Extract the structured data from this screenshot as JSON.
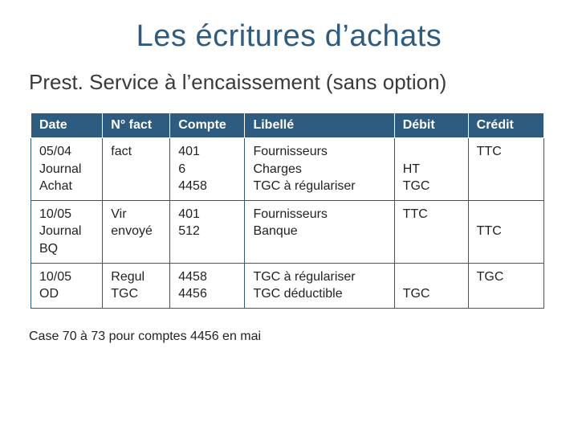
{
  "title": "Les écritures d’achats",
  "subtitle": "Prest. Service à l’encaissement (sans option)",
  "table": {
    "headers": {
      "date": "Date",
      "fact": "N° fact",
      "compte": "Compte",
      "libelle": "Libellé",
      "debit": "Débit",
      "credit": "Crédit"
    },
    "header_bg": "#2e5b80",
    "header_fg": "#ffffff",
    "border_color": "#2e5b80",
    "font_size": 16,
    "rows": [
      {
        "date": "05/04\nJournal\nAchat",
        "fact": "fact",
        "compte": "401\n6\n4458",
        "libelle": "Fournisseurs\nCharges\nTGC à régulariser",
        "debit": "\nHT\nTGC",
        "credit": "TTC"
      },
      {
        "date": "10/05\nJournal\nBQ",
        "fact": "Vir\nenvoyé",
        "compte": "401\n512",
        "libelle": "Fournisseurs\nBanque",
        "debit": "TTC",
        "credit": "\nTTC"
      },
      {
        "date": "10/05\nOD",
        "fact": "Regul\nTGC",
        "compte": "4458\n4456",
        "libelle": "TGC à régulariser\nTGC déductible",
        "debit": "\nTGC",
        "credit": "TGC"
      }
    ]
  },
  "footnote": "Case 70 à 73 pour comptes 4456 en mai",
  "colors": {
    "title": "#2e5b80",
    "text": "#222222",
    "background": "#ffffff"
  }
}
